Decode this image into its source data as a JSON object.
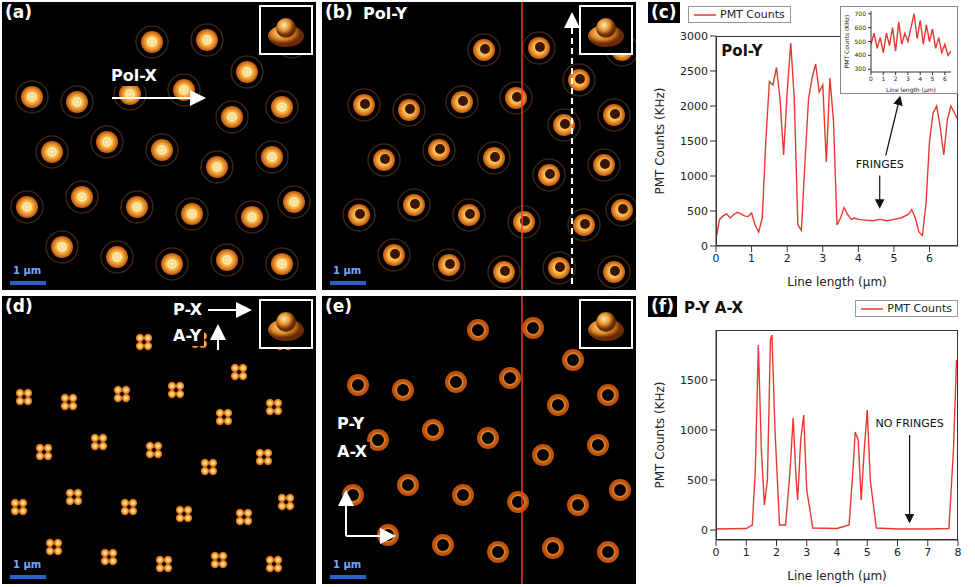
{
  "images": [
    {
      "panel": "(a)",
      "texts": [
        "Pol-X"
      ],
      "scale_bar": "1 µm"
    },
    {
      "panel": "(b)",
      "texts": [
        "Pol-Y"
      ],
      "scale_bar": "1 µm"
    },
    {
      "panel": "(d)",
      "texts": [
        "P-X",
        "A-Y"
      ],
      "scale_bar": "1 µm"
    },
    {
      "panel": "(e)",
      "texts": [
        "P-Y",
        "A-X"
      ],
      "scale_bar": "1 µm"
    }
  ],
  "chart_data": [
    {
      "panel": "(c)",
      "type": "line",
      "title": "Pol-Y",
      "annotations": [
        "FRINGES"
      ],
      "x_label": "Line length (µm)",
      "y_label": "PMT Counts (KHz)",
      "x": [
        0,
        0.1,
        0.2,
        0.3,
        0.4,
        0.5,
        0.6,
        0.7,
        0.8,
        0.9,
        1.0,
        1.1,
        1.2,
        1.3,
        1.4,
        1.5,
        1.6,
        1.7,
        1.8,
        1.9,
        2.0,
        2.1,
        2.2,
        2.3,
        2.4,
        2.5,
        2.6,
        2.7,
        2.8,
        2.9,
        3.0,
        3.1,
        3.2,
        3.3,
        3.4,
        3.5,
        3.6,
        3.7,
        3.8,
        3.9,
        4.0,
        4.2,
        4.4,
        4.6,
        4.8,
        5.0,
        5.2,
        5.4,
        5.5,
        5.6,
        5.7,
        5.8,
        5.9,
        6.0,
        6.1,
        6.2,
        6.3,
        6.4,
        6.5,
        6.6,
        6.7,
        6.8
      ],
      "series": [
        {
          "name": "PMT Counts",
          "color": "#e8382f",
          "values": [
            100,
            380,
            430,
            460,
            400,
            450,
            480,
            460,
            430,
            420,
            470,
            300,
            200,
            400,
            1500,
            2350,
            2300,
            2550,
            2100,
            1300,
            2200,
            2900,
            2100,
            300,
            220,
            1200,
            2100,
            2400,
            2600,
            2200,
            2300,
            1200,
            2400,
            1800,
            300,
            400,
            550,
            450,
            380,
            400,
            380,
            370,
            360,
            380,
            360,
            380,
            400,
            450,
            520,
            400,
            200,
            150,
            600,
            1500,
            1900,
            2000,
            1700,
            1300,
            1800,
            2000,
            1900,
            1800
          ]
        }
      ],
      "xlim": [
        0,
        6.8
      ],
      "xticks": [
        0,
        1,
        2,
        3,
        4,
        5,
        6
      ],
      "ylim": [
        0,
        3000
      ],
      "yticks": [
        0,
        500,
        1000,
        1500,
        2000,
        2500,
        3000
      ],
      "legend": "top left"
    },
    {
      "type": "line",
      "x_label": "Line length (µm)",
      "y_label": "PMT Counts (KHz)",
      "x": [
        0,
        0.25,
        0.5,
        0.75,
        1,
        1.25,
        1.5,
        1.75,
        2,
        2.25,
        2.5,
        2.75,
        3,
        3.25,
        3.5,
        3.75,
        4,
        4.25,
        4.5,
        4.75,
        5,
        5.25,
        5.5,
        5.75,
        6,
        6.25,
        6.5
      ],
      "series": [
        {
          "color": "#e8382f",
          "values": [
            480,
            560,
            450,
            530,
            420,
            560,
            470,
            600,
            430,
            640,
            480,
            560,
            500,
            600,
            700,
            520,
            650,
            480,
            620,
            500,
            590,
            450,
            530,
            420,
            480,
            400,
            430
          ]
        }
      ],
      "xlim": [
        0,
        6.5
      ],
      "xticks": [
        0,
        1,
        2,
        3,
        4,
        5,
        6
      ],
      "ylim": [
        280,
        720
      ],
      "yticks": [
        300,
        400,
        500,
        600,
        700
      ]
    },
    {
      "panel": "(f)",
      "type": "line",
      "title": "P-Y A-X",
      "annotations": [
        "NO FRINGES"
      ],
      "x_label": "Line length (µm)",
      "y_label": "PMT Counts (KHz)",
      "x": [
        0,
        0.5,
        1.0,
        1.2,
        1.3,
        1.4,
        1.5,
        1.6,
        1.7,
        1.8,
        1.85,
        1.95,
        2.1,
        2.3,
        2.45,
        2.55,
        2.65,
        2.7,
        2.8,
        2.9,
        3.0,
        3.2,
        4.0,
        4.4,
        4.55,
        4.6,
        4.7,
        4.8,
        4.9,
        5.0,
        5.1,
        5.3,
        6.0,
        7.0,
        7.7,
        7.85,
        7.95
      ],
      "series": [
        {
          "name": "PMT Counts",
          "color": "#e8382f",
          "values": [
            10,
            12,
            15,
            50,
            600,
            1850,
            800,
            250,
            500,
            1900,
            1950,
            1000,
            50,
            50,
            600,
            1120,
            500,
            300,
            900,
            1150,
            400,
            20,
            15,
            50,
            700,
            980,
            900,
            300,
            800,
            1200,
            500,
            20,
            10,
            10,
            15,
            800,
            1700
          ]
        }
      ],
      "xlim": [
        0,
        8
      ],
      "xticks": [
        0,
        1,
        2,
        3,
        4,
        5,
        6,
        7,
        8
      ],
      "ylim": [
        -100,
        2000
      ],
      "yticks": [
        0,
        500,
        1000,
        1500
      ],
      "legend": "top right"
    }
  ]
}
